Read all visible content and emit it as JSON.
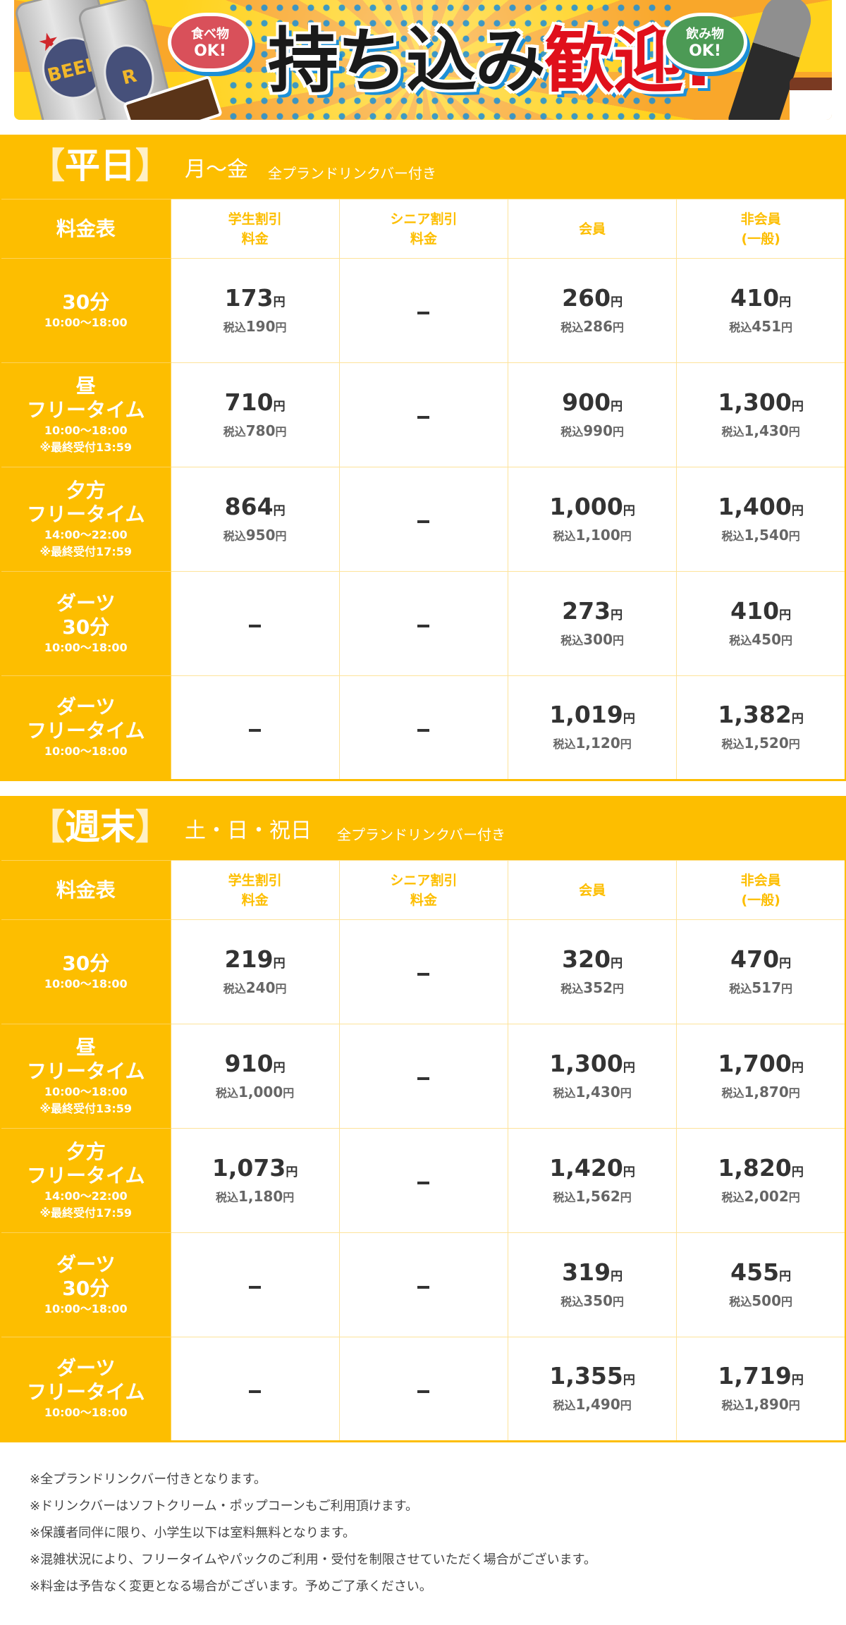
{
  "banner": {
    "headline_black": "持ち込み",
    "headline_red": "歓迎!",
    "food_bubble": {
      "line1": "食べ物",
      "line2": "OK!"
    },
    "drink_bubble": {
      "line1": "飲み物",
      "line2": "OK!"
    },
    "can_label": "BEER",
    "can_label_2": "R",
    "colors": {
      "headline": "#1a1a1a",
      "headline_accent": "#e0101b",
      "food_bubble": "#d9505a",
      "drink_bubble": "#4c9a55"
    }
  },
  "theme": {
    "accent": "#fdbe00",
    "bracket": "#fff0c6",
    "text": "#333333",
    "tax_text": "#666666"
  },
  "columns": [
    "料金表",
    "学生割引\n料金",
    "シニア割引\n料金",
    "会員",
    "非会員\n(一般)"
  ],
  "column_lines": [
    [
      "料金表"
    ],
    [
      "学生割引",
      "料金"
    ],
    [
      "シニア割引",
      "料金"
    ],
    [
      "会員"
    ],
    [
      "非会員",
      "(一般)"
    ]
  ],
  "weekday": {
    "bracket_open": "【",
    "title": "平日",
    "bracket_close": "】",
    "days": "月〜金",
    "subtitle": "全プランドリンクバー付き",
    "rows": [
      {
        "label": [
          "30分"
        ],
        "time": "10:00〜18:00",
        "note": "",
        "prices": [
          {
            "price": "173",
            "tax": "190"
          },
          null,
          {
            "price": "260",
            "tax": "286"
          },
          {
            "price": "410",
            "tax": "451"
          }
        ]
      },
      {
        "label": [
          "昼",
          "フリータイム"
        ],
        "time": "10:00〜18:00",
        "note": "※最終受付13:59",
        "prices": [
          {
            "price": "710",
            "tax": "780"
          },
          null,
          {
            "price": "900",
            "tax": "990"
          },
          {
            "price": "1,300",
            "tax": "1,430"
          }
        ]
      },
      {
        "label": [
          "夕方",
          "フリータイム"
        ],
        "time": "14:00〜22:00",
        "note": "※最終受付17:59",
        "prices": [
          {
            "price": "864",
            "tax": "950"
          },
          null,
          {
            "price": "1,000",
            "tax": "1,100"
          },
          {
            "price": "1,400",
            "tax": "1,540"
          }
        ]
      },
      {
        "label": [
          "ダーツ",
          "30分"
        ],
        "time": "10:00〜18:00",
        "note": "",
        "prices": [
          null,
          null,
          {
            "price": "273",
            "tax": "300"
          },
          {
            "price": "410",
            "tax": "450"
          }
        ]
      },
      {
        "label": [
          "ダーツ",
          "フリータイム"
        ],
        "time": "10:00〜18:00",
        "note": "",
        "prices": [
          null,
          null,
          {
            "price": "1,019",
            "tax": "1,120"
          },
          {
            "price": "1,382",
            "tax": "1,520"
          }
        ]
      }
    ]
  },
  "weekend": {
    "bracket_open": "【",
    "title": "週末",
    "bracket_close": "】",
    "days": "土・日・祝日",
    "subtitle": "全プランドリンクバー付き",
    "rows": [
      {
        "label": [
          "30分"
        ],
        "time": "10:00〜18:00",
        "note": "",
        "prices": [
          {
            "price": "219",
            "tax": "240"
          },
          null,
          {
            "price": "320",
            "tax": "352"
          },
          {
            "price": "470",
            "tax": "517"
          }
        ]
      },
      {
        "label": [
          "昼",
          "フリータイム"
        ],
        "time": "10:00〜18:00",
        "note": "※最終受付13:59",
        "prices": [
          {
            "price": "910",
            "tax": "1,000"
          },
          null,
          {
            "price": "1,300",
            "tax": "1,430"
          },
          {
            "price": "1,700",
            "tax": "1,870"
          }
        ]
      },
      {
        "label": [
          "夕方",
          "フリータイム"
        ],
        "time": "14:00〜22:00",
        "note": "※最終受付17:59",
        "prices": [
          {
            "price": "1,073",
            "tax": "1,180"
          },
          null,
          {
            "price": "1,420",
            "tax": "1,562"
          },
          {
            "price": "1,820",
            "tax": "2,002"
          }
        ]
      },
      {
        "label": [
          "ダーツ",
          "30分"
        ],
        "time": "10:00〜18:00",
        "note": "",
        "prices": [
          null,
          null,
          {
            "price": "319",
            "tax": "350"
          },
          {
            "price": "455",
            "tax": "500"
          }
        ]
      },
      {
        "label": [
          "ダーツ",
          "フリータイム"
        ],
        "time": "10:00〜18:00",
        "note": "",
        "prices": [
          null,
          null,
          {
            "price": "1,355",
            "tax": "1,490"
          },
          {
            "price": "1,719",
            "tax": "1,890"
          }
        ]
      }
    ]
  },
  "labels": {
    "yen": "円",
    "tax_prefix": "税込",
    "unavailable": "－"
  },
  "notes": [
    "※全プランドリンクバー付きとなります。",
    "※ドリンクバーはソフトクリーム・ポップコーンもご利用頂けます。",
    "※保護者同伴に限り、小学生以下は室料無料となります。",
    "※混雑状況により、フリータイムやパックのご利用・受付を制限させていただく場合がございます。",
    "※料金は予告なく変更となる場合がございます。予めご了承ください。"
  ]
}
